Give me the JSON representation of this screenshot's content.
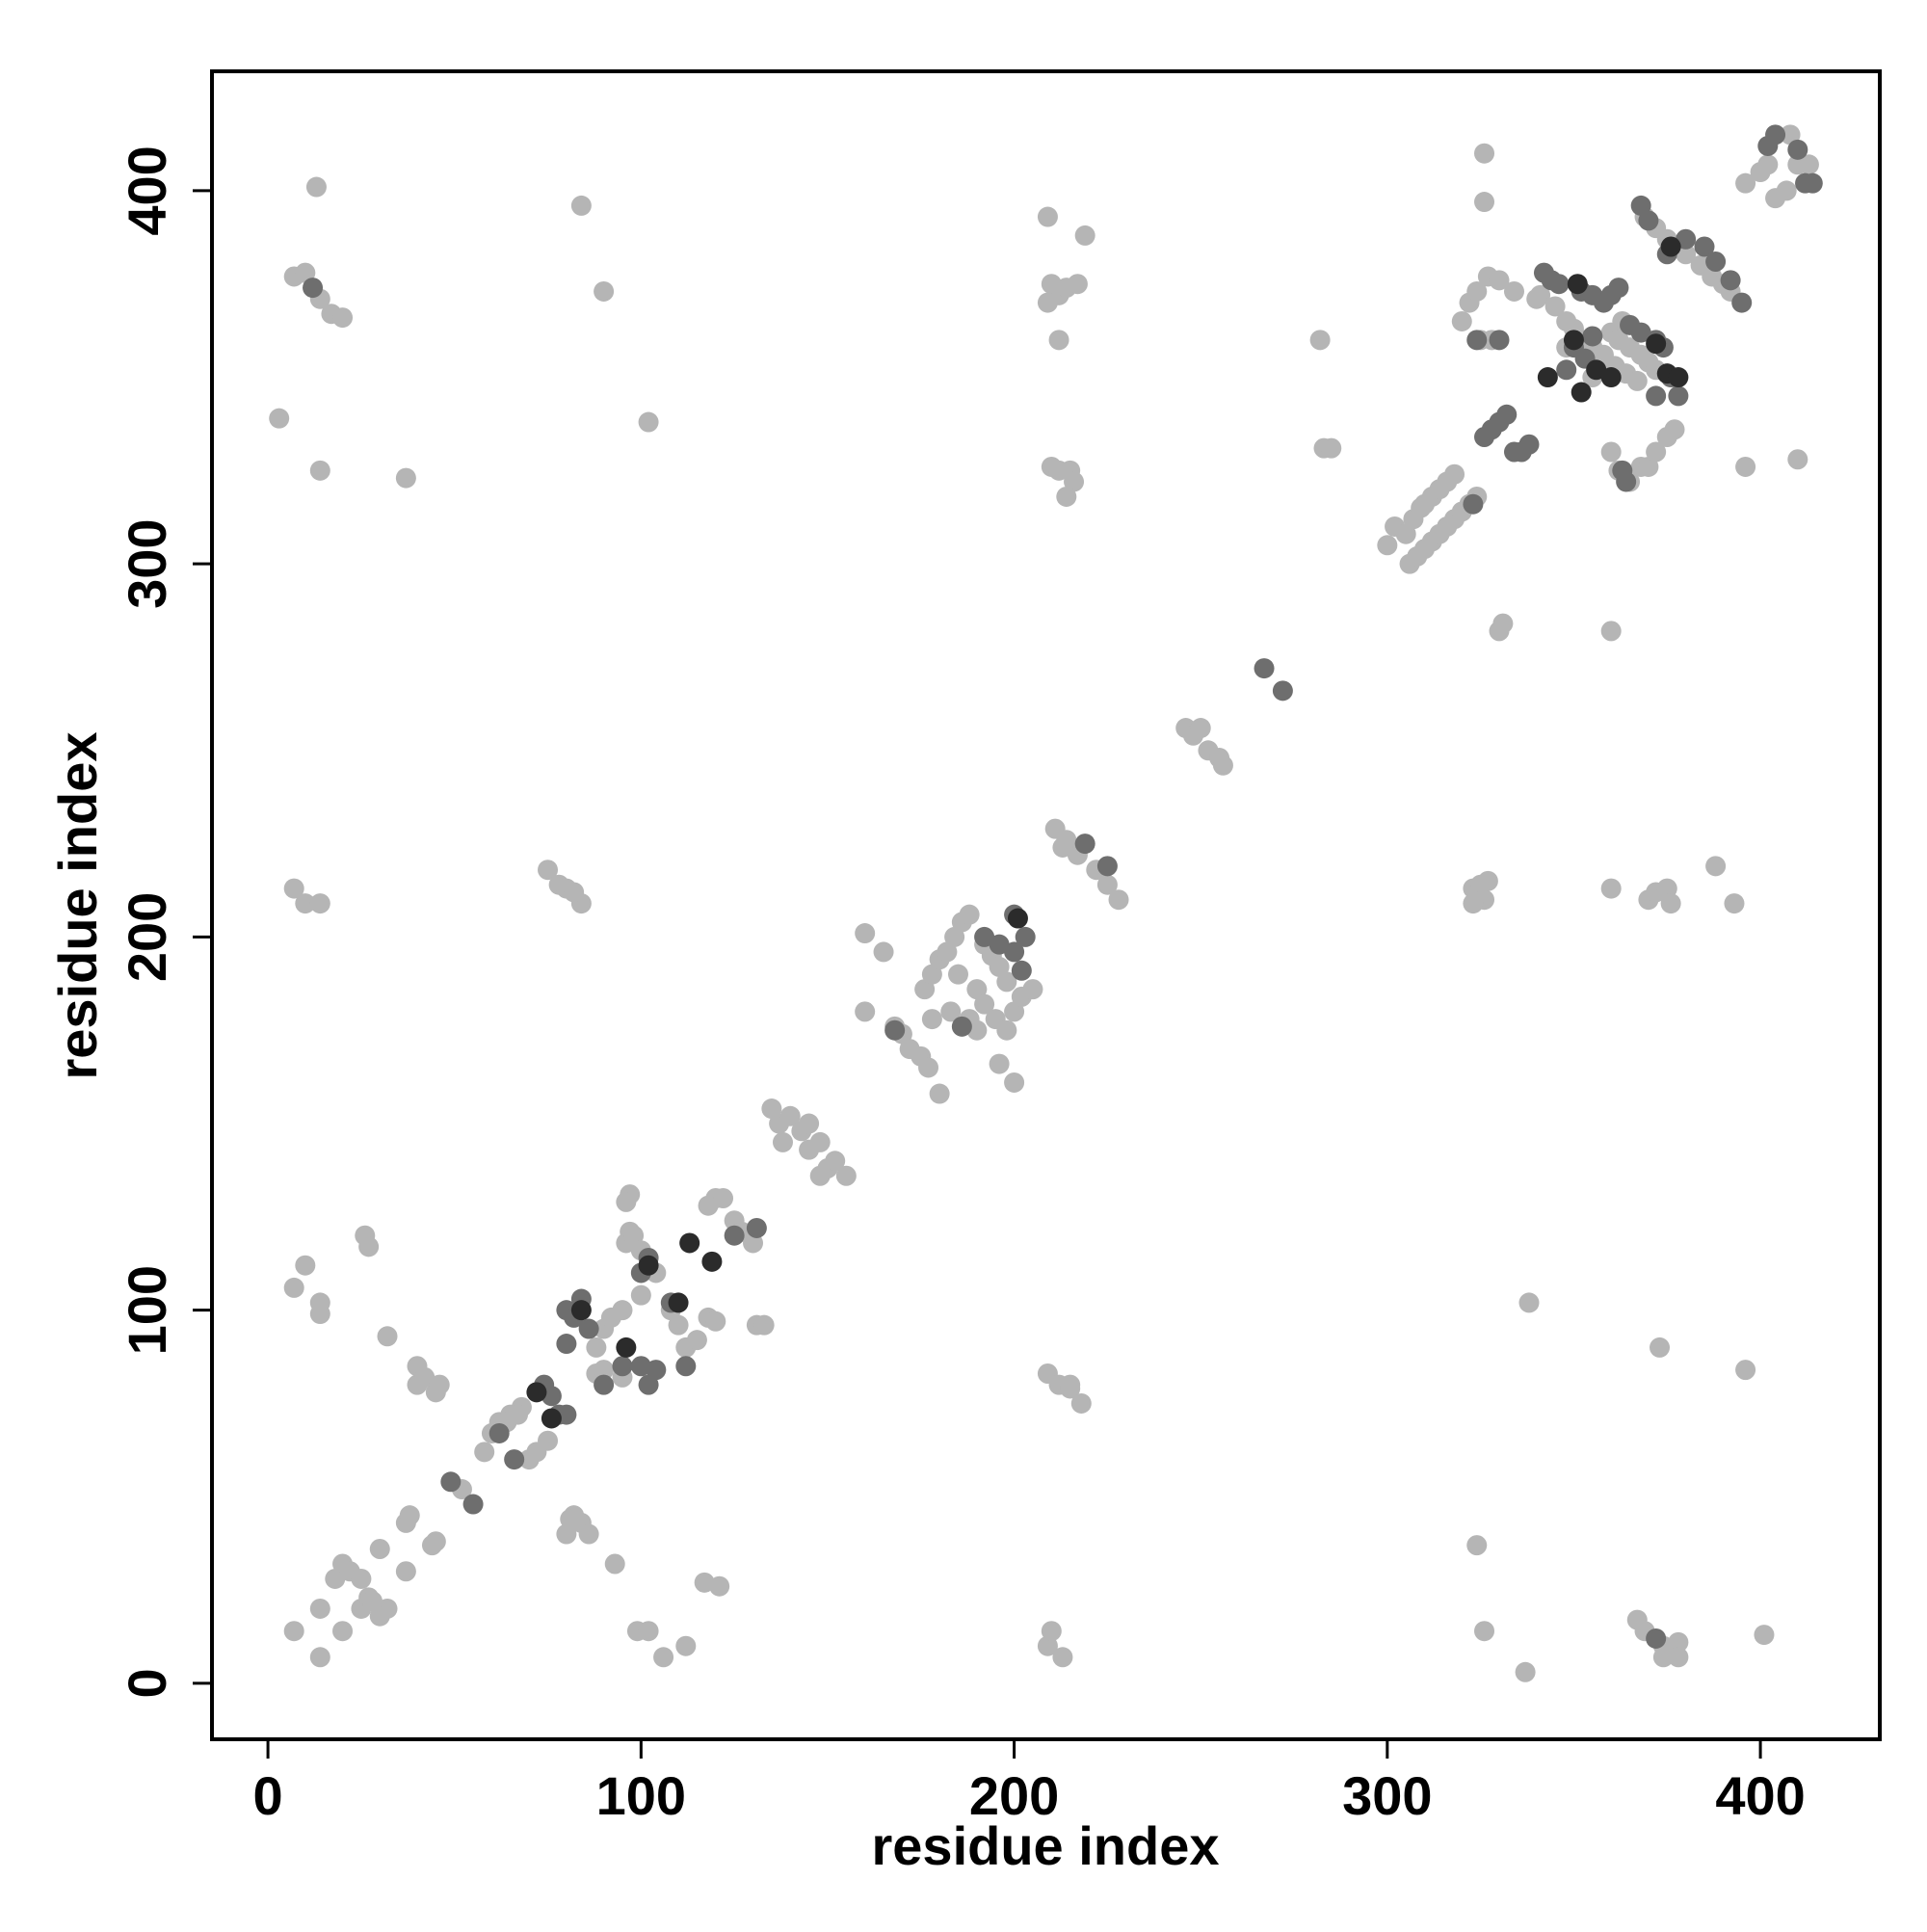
{
  "chart_data": {
    "type": "scatter",
    "xlabel": "residue index",
    "ylabel": "residue index",
    "xlim": [
      -15,
      432
    ],
    "ylim": [
      -15,
      432
    ],
    "xticks": [
      0,
      100,
      200,
      300,
      400
    ],
    "yticks": [
      0,
      100,
      200,
      300,
      400
    ],
    "grid": false,
    "series": [
      {
        "color": "#b5b5b5",
        "x": [
          7,
          14,
          14,
          20,
          25,
          18,
          20,
          22,
          25,
          27,
          30,
          32,
          30,
          28,
          37,
          37,
          38,
          45,
          44,
          52,
          58,
          60,
          62,
          65,
          68,
          70,
          72,
          75,
          67,
          64,
          7,
          10,
          14,
          14,
          26,
          27,
          32,
          40,
          40,
          42,
          45,
          46,
          80,
          82,
          84,
          81,
          86,
          93,
          99,
          102,
          106,
          112,
          117,
          121,
          88,
          90,
          92,
          95,
          96,
          97,
          97,
          96,
          98,
          100,
          104,
          108,
          110,
          112,
          115,
          118,
          120,
          118,
          120,
          122,
          125,
          127,
          130,
          131,
          133,
          88,
          90,
          100,
          95,
          135,
          137,
          140,
          143,
          145,
          138,
          148,
          150,
          152,
          155,
          145,
          148,
          160,
          165,
          160,
          168,
          170,
          172,
          175,
          177,
          180,
          176,
          178,
          180,
          182,
          184,
          186,
          188,
          185,
          190,
          192,
          195,
          198,
          200,
          202,
          205,
          196,
          200,
          178,
          183,
          188,
          190,
          192,
          194,
          196,
          198,
          211,
          214,
          217,
          222,
          225,
          228,
          213,
          246,
          248,
          250,
          252,
          255,
          256,
          209,
          210,
          212,
          209,
          214,
          217,
          212,
          210,
          212,
          215,
          216,
          214,
          219,
          282,
          283,
          285,
          209,
          212,
          215,
          218,
          209,
          210,
          213,
          215,
          3,
          7,
          10,
          14,
          17,
          20,
          14,
          13,
          37,
          84,
          90,
          102,
          7,
          10,
          14,
          75,
          78,
          80,
          84,
          82,
          323,
          325,
          326,
          323,
          327,
          360,
          370,
          372,
          375,
          376,
          388,
          393,
          324,
          326,
          338,
          337,
          373,
          396,
          401,
          367,
          369,
          374,
          377,
          378,
          378,
          374,
          300,
          302,
          305,
          307,
          309,
          310,
          312,
          314,
          316,
          318,
          306,
          308,
          310,
          312,
          314,
          316,
          318,
          320,
          322,
          324,
          330,
          331,
          360,
          320,
          322,
          324,
          327,
          330,
          325,
          328,
          334,
          341,
          345,
          348,
          350,
          352,
          355,
          358,
          361,
          364,
          367,
          360,
          362,
          365,
          368,
          370,
          372,
          360,
          362,
          365,
          368,
          370,
          372,
          375,
          377,
          369,
          372,
          375,
          378,
          380,
          384,
          387,
          390,
          392,
          396,
          400,
          402,
          404,
          407,
          410,
          413,
          408,
          396,
          410,
          326,
          326,
          363,
          340,
          348,
          355
        ],
        "y": [
          14,
          7,
          20,
          14,
          20,
          28,
          32,
          30,
          28,
          23,
          18,
          20,
          36,
          22,
          30,
          43,
          45,
          38,
          37,
          52,
          62,
          67,
          70,
          72,
          74,
          60,
          62,
          65,
          72,
          70,
          106,
          112,
          102,
          99,
          120,
          117,
          93,
          85,
          80,
          82,
          78,
          80,
          40,
          45,
          43,
          44,
          40,
          32,
          14,
          14,
          7,
          10,
          27,
          26,
          90,
          95,
          98,
          100,
          118,
          121,
          131,
          129,
          120,
          116,
          110,
          100,
          96,
          90,
          92,
          98,
          97,
          128,
          130,
          130,
          124,
          121,
          118,
          96,
          96,
          83,
          84,
          104,
          82,
          154,
          150,
          152,
          148,
          150,
          145,
          136,
          138,
          140,
          136,
          143,
          145,
          180,
          196,
          201,
          176,
          174,
          170,
          168,
          165,
          158,
          186,
          190,
          194,
          196,
          200,
          204,
          206,
          190,
          186,
          182,
          178,
          175,
          180,
          184,
          186,
          166,
          161,
          178,
          180,
          178,
          175,
          198,
          195,
          192,
          188,
          229,
          226,
          222,
          218,
          214,
          210,
          224,
          256,
          254,
          256,
          250,
          248,
          246,
          393,
          375,
          372,
          370,
          374,
          375,
          360,
          326,
          325,
          325,
          322,
          318,
          388,
          360,
          331,
          331,
          83,
          80,
          79,
          75,
          10,
          14,
          7,
          80,
          339,
          377,
          378,
          371,
          367,
          366,
          325,
          401,
          323,
          396,
          373,
          338,
          213,
          209,
          209,
          218,
          214,
          213,
          209,
          212,
          213,
          214,
          210,
          209,
          215,
          213,
          210,
          212,
          213,
          209,
          219,
          209,
          37,
          14,
          102,
          3,
          90,
          84,
          13,
          17,
          14,
          10,
          9,
          11,
          7,
          7,
          305,
          310,
          308,
          312,
          315,
          316,
          318,
          320,
          322,
          324,
          300,
          302,
          304,
          306,
          308,
          310,
          312,
          314,
          316,
          318,
          282,
          284,
          282,
          365,
          370,
          373,
          377,
          376,
          360,
          360,
          373,
          372,
          369,
          365,
          363,
          360,
          358,
          356,
          353,
          351,
          349,
          362,
          360,
          358,
          356,
          354,
          352,
          330,
          325,
          322,
          326,
          326,
          330,
          334,
          336,
          393,
          390,
          387,
          385,
          383,
          380,
          377,
          375,
          373,
          402,
          405,
          407,
          398,
          400,
          407,
          407,
          415,
          326,
          328,
          410,
          397,
          365,
          371,
          358,
          350
        ]
      },
      {
        "color": "#6e6e6e",
        "x": [
          80,
          82,
          84,
          86,
          80,
          90,
          95,
          100,
          102,
          104,
          100,
          102,
          108,
          112,
          125,
          131,
          62,
          66,
          78,
          80,
          49,
          55,
          74,
          76,
          12,
          372,
          186,
          192,
          196,
          200,
          203,
          200,
          202,
          168,
          219,
          225,
          267,
          272,
          326,
          328,
          330,
          332,
          334,
          336,
          338,
          323,
          324,
          330,
          342,
          344,
          346,
          352,
          355,
          358,
          360,
          362,
          365,
          368,
          372,
          374,
          376,
          378,
          372,
          363,
          364,
          368,
          370,
          375,
          380,
          385,
          388,
          392,
          395,
          402,
          404,
          410,
          414,
          412,
          348,
          350,
          353,
          355
        ],
        "y": [
          100,
          98,
          103,
          95,
          91,
          80,
          85,
          85,
          80,
          84,
          110,
          114,
          102,
          85,
          120,
          122,
          67,
          60,
          72,
          72,
          54,
          48,
          80,
          77,
          374,
          12,
          176,
          200,
          198,
          196,
          200,
          206,
          191,
          175,
          225,
          219,
          272,
          266,
          334,
          336,
          338,
          340,
          330,
          330,
          332,
          316,
          360,
          360,
          378,
          376,
          375,
          373,
          372,
          370,
          372,
          374,
          364,
          362,
          360,
          358,
          350,
          345,
          345,
          325,
          322,
          396,
          392,
          383,
          387,
          385,
          381,
          376,
          370,
          412,
          415,
          411,
          402,
          402,
          352,
          358,
          355,
          361
        ]
      },
      {
        "color": "#2b2b2b",
        "x": [
          84,
          102,
          113,
          119,
          110,
          96,
          72,
          76,
          201,
          351,
          350,
          356,
          372,
          375,
          378,
          376,
          360,
          343,
          352
        ],
        "y": [
          100,
          112,
          118,
          113,
          102,
          90,
          78,
          71,
          205,
          375,
          360,
          352,
          359,
          351,
          350,
          385,
          350,
          350,
          346
        ]
      }
    ]
  }
}
